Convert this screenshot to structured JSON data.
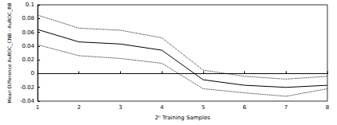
{
  "chart_data": {
    "type": "line",
    "x_label": "2ⁿ Training Samples",
    "y_label": "Mean Difference AuROC_CNB - AuROC_RB",
    "x": [
      1,
      2,
      3,
      4,
      5,
      6,
      7,
      8
    ],
    "series": [
      {
        "color": "#000000",
        "line_style": "solid",
        "values": [
          0.064,
          0.046,
          0.043,
          0.034,
          -0.009,
          -0.017,
          -0.02,
          -0.017
        ]
      },
      {
        "color": "#000000",
        "line_style": "dotted",
        "values": [
          0.085,
          0.066,
          0.063,
          0.052,
          0.005,
          -0.004,
          -0.008,
          -0.004
        ]
      },
      {
        "color": "#000000",
        "line_style": "dotted",
        "values": [
          0.042,
          0.026,
          0.022,
          0.015,
          -0.022,
          -0.028,
          -0.033,
          -0.022
        ]
      }
    ],
    "hline": 0,
    "xlim": [
      1,
      8
    ],
    "xticks": [
      1,
      2,
      3,
      4,
      5,
      6,
      7,
      8
    ],
    "ylim": [
      -0.04,
      0.1
    ],
    "yticks": [
      -0.04,
      -0.02,
      0,
      0.02,
      0.04,
      0.06,
      0.08,
      0.1
    ],
    "grid": false
  }
}
